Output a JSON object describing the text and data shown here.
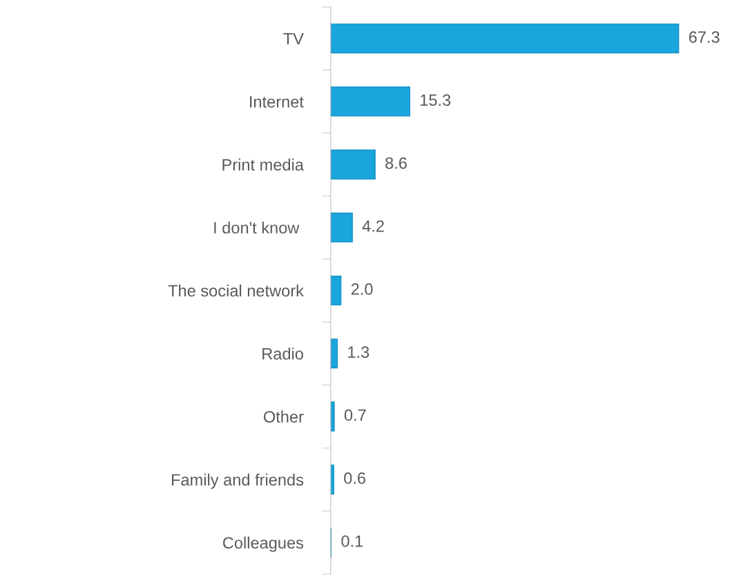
{
  "chart_data": {
    "type": "bar",
    "orientation": "horizontal",
    "categories": [
      "TV",
      "Internet",
      "Print media",
      "I don't know ",
      "The social network",
      "Radio",
      "Other",
      "Family and friends",
      "Colleagues"
    ],
    "values": [
      67.3,
      15.3,
      8.6,
      4.2,
      2.0,
      1.3,
      0.7,
      0.6,
      0.1
    ],
    "value_labels": [
      "67.3",
      "15.3",
      "8.6",
      "4.2",
      "2.0",
      "1.3",
      "0.7",
      "0.6",
      "0.1"
    ],
    "color": "#1aa5dc",
    "tick_labels": "y",
    "grid": false,
    "legend": false
  }
}
